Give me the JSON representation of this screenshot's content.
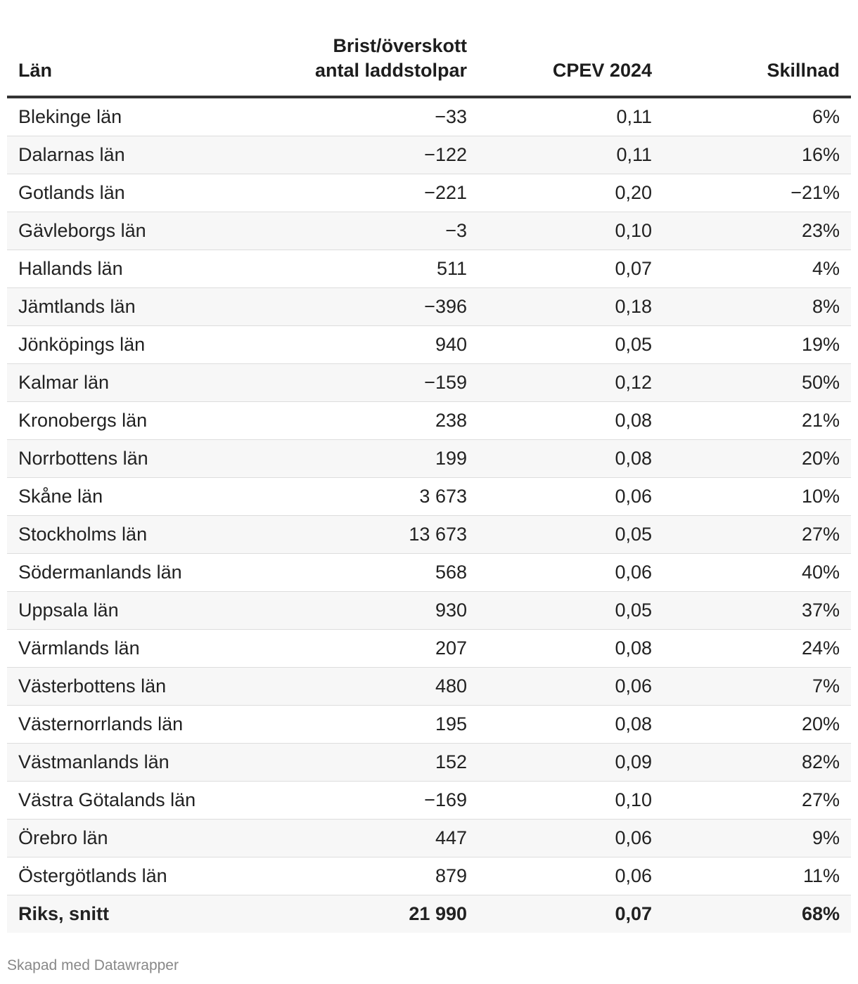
{
  "chart_data": {
    "type": "table",
    "columns": [
      {
        "key": "lan",
        "lines": [
          "Län"
        ],
        "align": "left"
      },
      {
        "key": "brist",
        "lines": [
          "Brist/överskott",
          "antal laddstolpar"
        ],
        "align": "right"
      },
      {
        "key": "cpev",
        "lines": [
          "CPEV 2024"
        ],
        "align": "right"
      },
      {
        "key": "skillnad",
        "lines": [
          "Skillnad"
        ],
        "align": "right"
      }
    ],
    "rows": [
      {
        "lan": "Blekinge län",
        "brist": "−33",
        "cpev": "0,11",
        "skillnad": "6%"
      },
      {
        "lan": "Dalarnas län",
        "brist": "−122",
        "cpev": "0,11",
        "skillnad": "16%"
      },
      {
        "lan": "Gotlands län",
        "brist": "−221",
        "cpev": "0,20",
        "skillnad": "−21%"
      },
      {
        "lan": "Gävleborgs län",
        "brist": "−3",
        "cpev": "0,10",
        "skillnad": "23%"
      },
      {
        "lan": "Hallands län",
        "brist": "511",
        "cpev": "0,07",
        "skillnad": "4%"
      },
      {
        "lan": "Jämtlands län",
        "brist": "−396",
        "cpev": "0,18",
        "skillnad": "8%"
      },
      {
        "lan": "Jönköpings län",
        "brist": "940",
        "cpev": "0,05",
        "skillnad": "19%"
      },
      {
        "lan": "Kalmar län",
        "brist": "−159",
        "cpev": "0,12",
        "skillnad": "50%"
      },
      {
        "lan": "Kronobergs län",
        "brist": "238",
        "cpev": "0,08",
        "skillnad": "21%"
      },
      {
        "lan": "Norrbottens län",
        "brist": "199",
        "cpev": "0,08",
        "skillnad": "20%"
      },
      {
        "lan": "Skåne län",
        "brist": "3 673",
        "cpev": "0,06",
        "skillnad": "10%"
      },
      {
        "lan": "Stockholms län",
        "brist": "13 673",
        "cpev": "0,05",
        "skillnad": "27%"
      },
      {
        "lan": "Södermanlands län",
        "brist": "568",
        "cpev": "0,06",
        "skillnad": "40%"
      },
      {
        "lan": "Uppsala län",
        "brist": "930",
        "cpev": "0,05",
        "skillnad": "37%"
      },
      {
        "lan": "Värmlands län",
        "brist": "207",
        "cpev": "0,08",
        "skillnad": "24%"
      },
      {
        "lan": "Västerbottens län",
        "brist": "480",
        "cpev": "0,06",
        "skillnad": "7%"
      },
      {
        "lan": "Västernorrlands län",
        "brist": "195",
        "cpev": "0,08",
        "skillnad": "20%"
      },
      {
        "lan": "Västmanlands län",
        "brist": "152",
        "cpev": "0,09",
        "skillnad": "82%"
      },
      {
        "lan": "Västra Götalands län",
        "brist": "−169",
        "cpev": "0,10",
        "skillnad": "27%"
      },
      {
        "lan": "Örebro län",
        "brist": "447",
        "cpev": "0,06",
        "skillnad": "9%"
      },
      {
        "lan": "Östergötlands län",
        "brist": "879",
        "cpev": "0,06",
        "skillnad": "11%"
      }
    ],
    "total": {
      "lan": "Riks, snitt",
      "brist": "21 990",
      "cpev": "0,07",
      "skillnad": "68%"
    }
  },
  "footer": {
    "credit": "Skapad med Datawrapper"
  }
}
